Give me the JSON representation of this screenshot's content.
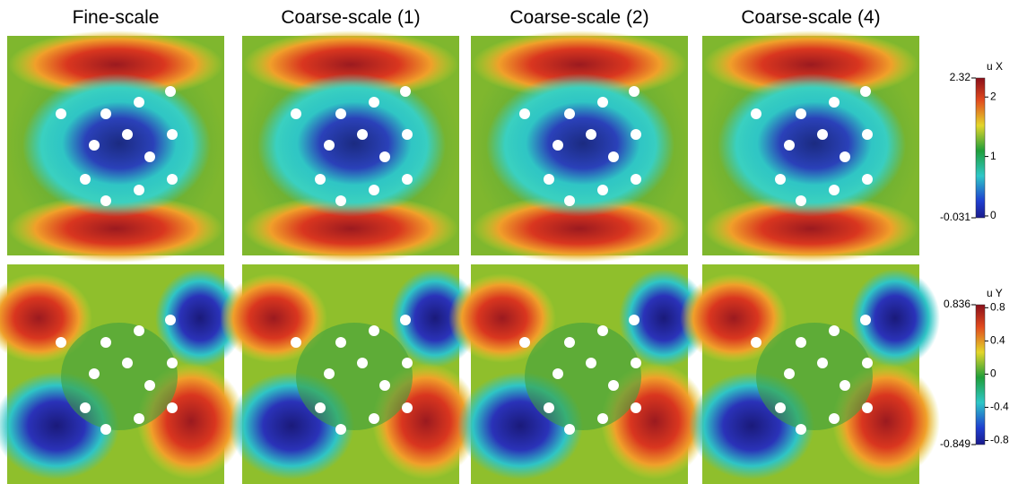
{
  "columns": [
    "Fine-scale",
    "Coarse-scale (1)",
    "Coarse-scale (2)",
    "Coarse-scale (4)"
  ],
  "colorbars": [
    {
      "label": "u X",
      "min": -0.031,
      "max": 2.32,
      "ticks": [
        0,
        1,
        2
      ]
    },
    {
      "label": "u Y",
      "min": -0.849,
      "max": 0.836,
      "ticks": [
        -0.8,
        -0.4,
        0,
        0.4,
        0.8
      ]
    }
  ]
}
